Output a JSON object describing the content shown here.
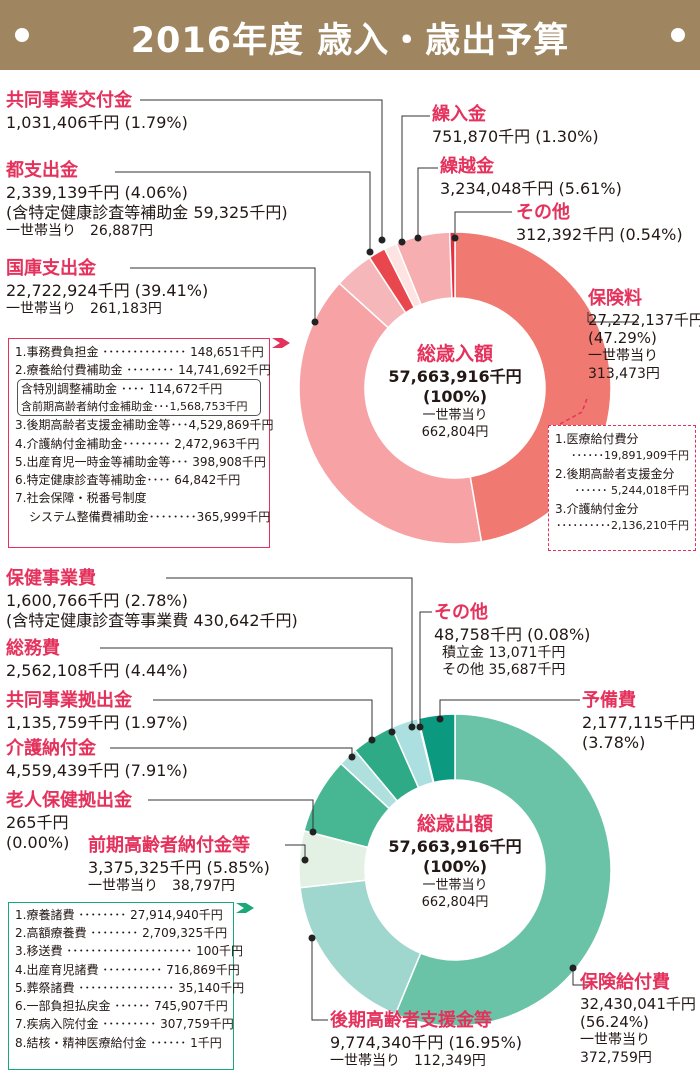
{
  "title": "2016年度 歳入・歳出予算",
  "colors": {
    "banner": "#a08660",
    "accent_pink": "#e5325c",
    "accent_green": "#1ba879"
  },
  "chart_data": [
    {
      "type": "pie",
      "title": "総歳入額",
      "center": {
        "title": "総歳入額",
        "value": "57,663,916千円",
        "pct": "(100%)",
        "per_household_label": "一世帯当り",
        "per_household": "662,804円"
      },
      "slices": [
        {
          "name": "保険料",
          "value": 27272137,
          "pct": 47.29,
          "color": "#f07a72"
        },
        {
          "name": "国庫支出金",
          "value": 22722924,
          "pct": 39.41,
          "color": "#f7a3a6"
        },
        {
          "name": "都支出金",
          "value": 2339139,
          "pct": 4.06,
          "color": "#f6b7ba"
        },
        {
          "name": "共同事業交付金",
          "value": 1031406,
          "pct": 1.79,
          "color": "#e8474d"
        },
        {
          "name": "繰入金",
          "value": 751870,
          "pct": 1.3,
          "color": "#fde3e1"
        },
        {
          "name": "繰越金",
          "value": 3234048,
          "pct": 5.61,
          "color": "#f6aeb1"
        },
        {
          "name": "その他",
          "value": 312392,
          "pct": 0.54,
          "color": "#e52f40"
        }
      ]
    },
    {
      "type": "pie",
      "title": "総歳出額",
      "center": {
        "title": "総歳出額",
        "value": "57,663,916千円",
        "pct": "(100%)",
        "per_household_label": "一世帯当り",
        "per_household": "662,804円"
      },
      "slices": [
        {
          "name": "保険給付費",
          "value": 32430041,
          "pct": 56.24,
          "color": "#6ac3a6"
        },
        {
          "name": "後期高齢者支援金等",
          "value": 9774340,
          "pct": 16.95,
          "color": "#9fd7ce"
        },
        {
          "name": "前期高齢者納付金等",
          "value": 3375325,
          "pct": 5.85,
          "color": "#e3f1e4"
        },
        {
          "name": "老人保健拠出金",
          "value": 265,
          "pct": 0.0,
          "color": "#e3f1e4"
        },
        {
          "name": "介護納付金",
          "value": 4559439,
          "pct": 7.91,
          "color": "#47b692"
        },
        {
          "name": "共同事業拠出金",
          "value": 1135759,
          "pct": 1.97,
          "color": "#b0e0de"
        },
        {
          "name": "総務費",
          "value": 2562108,
          "pct": 4.44,
          "color": "#2eaa86"
        },
        {
          "name": "保健事業費",
          "value": 1600766,
          "pct": 2.78,
          "color": "#abdfe0"
        },
        {
          "name": "その他",
          "value": 48758,
          "pct": 0.08,
          "color": "#ffffff"
        },
        {
          "name": "予備費",
          "value": 2177115,
          "pct": 3.78,
          "color": "#0b9a7f"
        }
      ]
    }
  ],
  "revenue": {
    "kyodo": {
      "title": "共同事業交付金",
      "value": "1,031,406千円 (1.79%)"
    },
    "toshishutsu": {
      "title": "都支出金",
      "value": "2,339,139千円 (4.06%)",
      "note": "(含特定健康診査等補助金 59,325千円)",
      "per": "一世帯当り　26,887円"
    },
    "kokko": {
      "title": "国庫支出金",
      "value": "22,722,924千円 (39.41%)",
      "per": "一世帯当り　261,183円"
    },
    "kurire": {
      "title": "繰入金",
      "value": "751,870千円 (1.30%)"
    },
    "kurikoshi": {
      "title": "繰越金",
      "value": "3,234,048千円 (5.61%)"
    },
    "sonota": {
      "title": "その他",
      "value": "312,392千円 (0.54%)"
    },
    "hokenryo": {
      "title": "保険料",
      "value": "27,272,137千円",
      "pct": "(47.29%)",
      "per_label": "一世帯当り",
      "per": "313,473円"
    },
    "kokko_items": [
      "1.事務費負担金 ･･････････････ 148,651千円",
      "2.療養給付費補助金 ････････ 14,741,692千円",
      "含特別調整補助金 ････ 114,672千円",
      "含前期高齢者納付金補助金･･･1,568,753千円",
      "3.後期高齢者支援金補助金等･･･4,529,869千円",
      "4.介護納付金補助金････････ 2,472,963千円",
      "5.出産育児一時金等補助金等･･･ 398,908千円",
      "6.特定健康診査等補助金････ 64,842千円",
      "7.社会保障・税番号制度",
      "システム整備費補助金････････365,999千円"
    ],
    "hokenryo_items": [
      "1.医療給付費分",
      "･･････19,891,909千円",
      "2.後期高齢者支援金分",
      "･･････ 5,244,018千円",
      "3.介護納付金分",
      "･･････････2,136,210千円"
    ]
  },
  "expenditure": {
    "hokenjigyo": {
      "title": "保健事業費",
      "value": "1,600,766千円 (2.78%)",
      "note": "(含特定健康診査等事業費 430,642千円)"
    },
    "somu": {
      "title": "総務費",
      "value": "2,562,108千円 (4.44%)"
    },
    "kyodo": {
      "title": "共同事業拠出金",
      "value": "1,135,759千円 (1.97%)"
    },
    "kaigo": {
      "title": "介護納付金",
      "value": "4,559,439千円 (7.91%)"
    },
    "rojin": {
      "title": "老人保健拠出金",
      "value": "265千円",
      "pct": "(0.00%)"
    },
    "zenki": {
      "title": "前期高齢者納付金等",
      "value": "3,375,325千円 (5.85%)",
      "per": "一世帯当り　38,797円"
    },
    "sonota": {
      "title": "その他",
      "value": "48,758千円 (0.08%)",
      "sub1": "積立金 13,071千円",
      "sub2": "その他 35,687千円"
    },
    "yobi": {
      "title": "予備費",
      "value": "2,177,115千円",
      "pct": "(3.78%)"
    },
    "kouki": {
      "title": "後期高齢者支援金等",
      "value": "9,774,340千円 (16.95%)",
      "per": "一世帯当り　112,349円"
    },
    "hokenkyufu": {
      "title": "保険給付費",
      "value": "32,430,041千円",
      "pct": "(56.24%)",
      "per_label": "一世帯当り",
      "per": "372,759円"
    },
    "kyufu_items": [
      "1.療養諸費 ････････ 27,914,940千円",
      "2.高額療養費 ････････ 2,709,325千円",
      "3.移送費 ･････････････････････ 100千円",
      "4.出産育児諸費 ･･････････ 716,869千円",
      "5.葬祭諸費 ････････････････ 35,140千円",
      "6.一部負担払戻金 ･･････ 745,907千円",
      "7.疾病入院付金 ･････････ 307,759千円",
      "8.結核・精神医療給付金 ･･････ 1千円"
    ]
  }
}
